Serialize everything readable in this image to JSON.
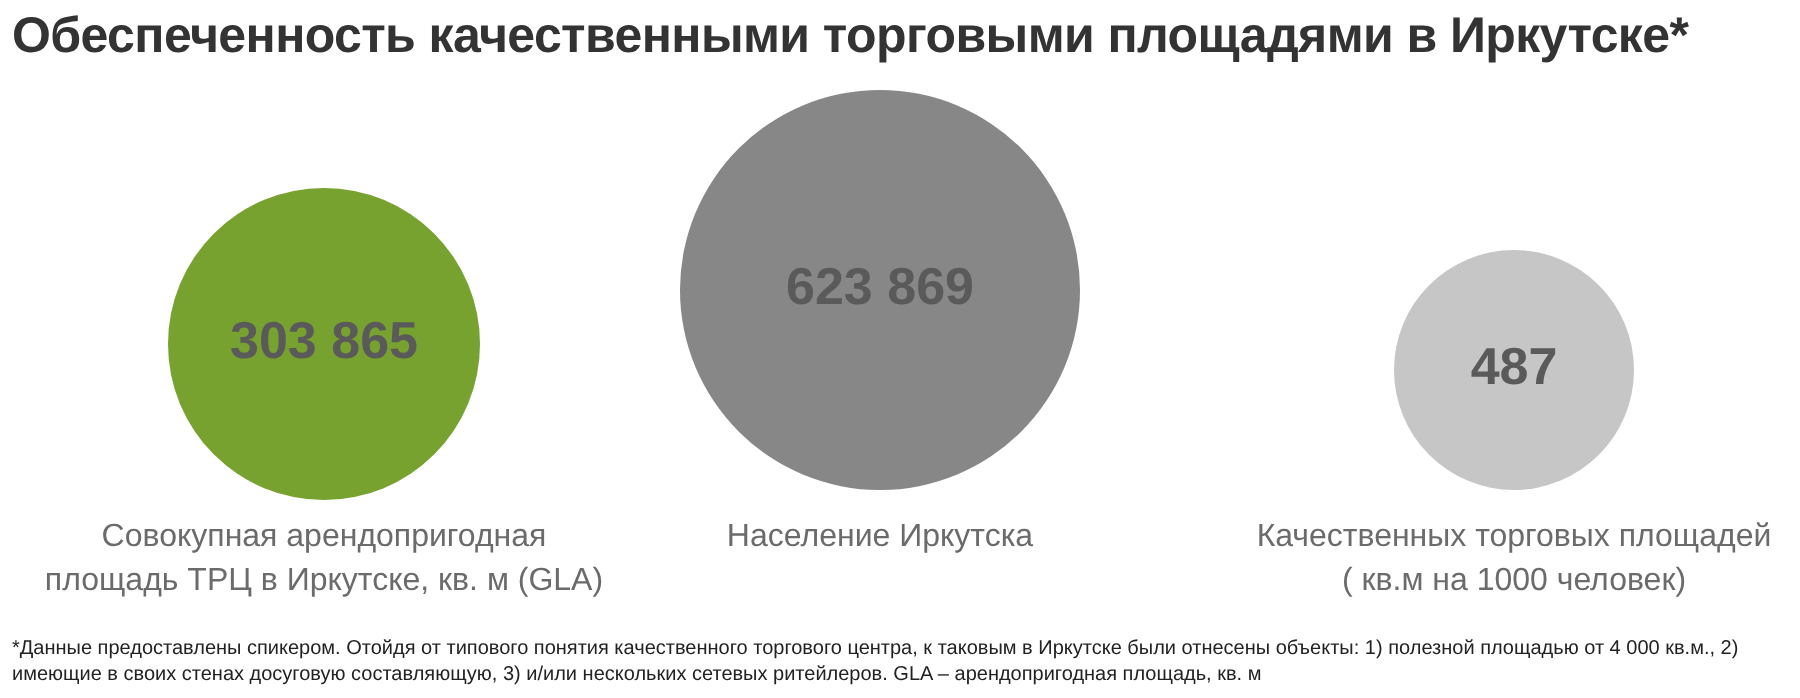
{
  "chart_data": {
    "type": "other",
    "title": "Обеспеченность качественными торговыми площадями в Иркутске*",
    "categories": [
      "Совокупная арендопригодная\nплощадь ТРЦ в Иркутске, кв. м (GLA)",
      "Население Иркутска",
      "Качественных торговых площадей\n( кв.м на 1000 человек)"
    ],
    "values": [
      303865,
      623869,
      487
    ],
    "data_labels": true,
    "colors": [
      "#78a22f",
      "#878787",
      "#c6c6c6"
    ],
    "annotations": [
      "*Данные предоставлены спикером. Отойдя от типового понятия качественного торгового центра, к таковым в Иркутске были отнесены объекты: 1) полезной площадью от 4 000 кв.м., 2) имеющие в своих стенах досуговую составляющую,  3) и/или нескольких сетевых ритейлеров. GLA – арендопригодная площадь, кв. м"
    ]
  }
}
